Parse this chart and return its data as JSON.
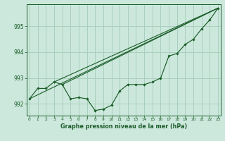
{
  "title": "Graphe pression niveau de la mer (hPa)",
  "bg_color": "#cce8dc",
  "grid_color": "#aacfbf",
  "line_color": "#1a5c28",
  "xlim": [
    -0.3,
    23.3
  ],
  "ylim": [
    991.55,
    995.85
  ],
  "yticks": [
    992,
    993,
    994,
    995
  ],
  "xticks": [
    0,
    1,
    2,
    3,
    4,
    5,
    6,
    7,
    8,
    9,
    10,
    11,
    12,
    13,
    14,
    15,
    16,
    17,
    18,
    19,
    20,
    21,
    22,
    23
  ],
  "data_line": [
    992.2,
    992.6,
    992.6,
    992.85,
    992.75,
    992.2,
    992.25,
    992.2,
    991.75,
    991.8,
    991.95,
    992.5,
    992.75,
    992.75,
    992.75,
    992.85,
    993.0,
    993.85,
    993.95,
    994.3,
    994.5,
    994.9,
    995.25,
    995.7
  ],
  "trend1": [
    0,
    992.2,
    23,
    995.7
  ],
  "trend2": [
    3,
    992.85,
    23,
    995.7
  ],
  "trend3": [
    4,
    992.75,
    23,
    995.7
  ]
}
